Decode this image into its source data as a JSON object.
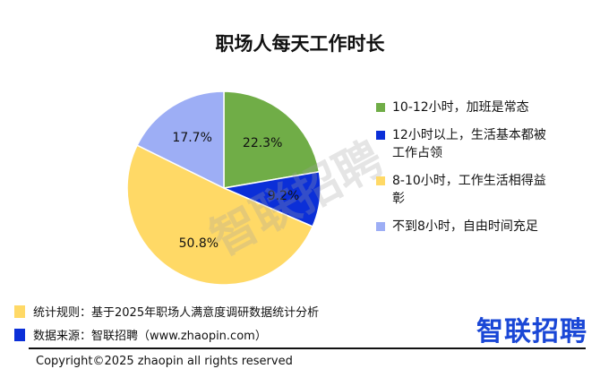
{
  "chart_data": {
    "type": "pie",
    "title": "职场人每天工作时长",
    "slices": [
      {
        "label": "10-12小时，加班是常态",
        "value": 22.3,
        "value_label": "22.3%",
        "color": "#70ad47"
      },
      {
        "label": "12小时以上，生活基本都被工作占领",
        "value": 9.2,
        "value_label": "9.2%",
        "color": "#0b2fd8"
      },
      {
        "label": "8-10小时，工作生活相得益彰",
        "value": 50.8,
        "value_label": "50.8%",
        "color": "#ffd966"
      },
      {
        "label": "不到8小时，自由时间充足",
        "value": 17.7,
        "value_label": "17.7%",
        "color": "#9daef5"
      }
    ],
    "start_angle_deg": 0,
    "direction": "clockwise",
    "legend_position": "right"
  },
  "footnotes": {
    "rule": {
      "text": "统计规则：基于2025年职场人满意度调研数据统计分析",
      "color": "#ffd966"
    },
    "source": {
      "text": "数据来源：智联招聘（www.zhaopin.com）",
      "color": "#0b2fd8"
    }
  },
  "brand": {
    "text": "智联招聘",
    "color": "#1a47d6"
  },
  "watermark": "智联招聘",
  "copyright": "Copyright©2025 zhaopin all rights reserved"
}
